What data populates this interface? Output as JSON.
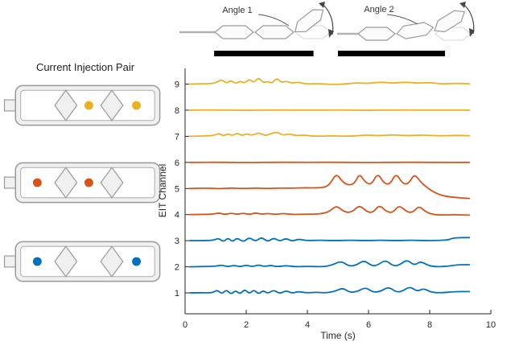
{
  "figure": {
    "left_panel": {
      "title": "Current Injection Pair",
      "actuators": [
        {
          "name": "injection-pair-yellow",
          "color": "#EDB120",
          "dots": [
            "middle",
            "right"
          ]
        },
        {
          "name": "injection-pair-orange",
          "color": "#D95319",
          "dots": [
            "left",
            "middle"
          ]
        },
        {
          "name": "injection-pair-blue",
          "color": "#0072BD",
          "dots": [
            "left",
            "right"
          ]
        }
      ]
    },
    "top_panel": {
      "angle1_label": "Angle 1",
      "angle2_label": "Angle 2"
    }
  },
  "chart_data": {
    "type": "line",
    "title": "",
    "xlabel": "Time (s)",
    "ylabel": "EIT Channel",
    "xlim": [
      0,
      10
    ],
    "ylim": [
      0.2,
      9.6
    ],
    "xticks": [
      0,
      2,
      4,
      6,
      8,
      10
    ],
    "yticks": [
      1,
      2,
      3,
      4,
      5,
      6,
      7,
      8,
      9
    ],
    "grid": false,
    "note": "Nine EIT channel traces; each series is plotted at y = channel + offset. Points are [time_s, offset].",
    "activity_bars": [
      {
        "name": "angle1-motion-bar",
        "start": 0.95,
        "end": 4.2
      },
      {
        "name": "angle2-motion-bar",
        "start": 5.0,
        "end": 8.5
      }
    ],
    "series": [
      {
        "name": "channel-1",
        "channel": 1,
        "color": "#0072BD",
        "points": [
          [
            0.15,
            0
          ],
          [
            0.5,
            0.01
          ],
          [
            0.9,
            0
          ],
          [
            1.05,
            0.12
          ],
          [
            1.2,
            -0.05
          ],
          [
            1.35,
            0.13
          ],
          [
            1.5,
            -0.06
          ],
          [
            1.65,
            0.1
          ],
          [
            1.8,
            -0.05
          ],
          [
            1.95,
            0.15
          ],
          [
            2.1,
            -0.04
          ],
          [
            2.25,
            0.13
          ],
          [
            2.4,
            -0.05
          ],
          [
            2.55,
            0.1
          ],
          [
            2.7,
            -0.03
          ],
          [
            2.9,
            0.12
          ],
          [
            3.1,
            -0.04
          ],
          [
            3.3,
            0.1
          ],
          [
            3.5,
            -0.02
          ],
          [
            3.7,
            0.06
          ],
          [
            3.95,
            0
          ],
          [
            4.3,
            0.03
          ],
          [
            4.6,
            0
          ],
          [
            4.9,
            0.06
          ],
          [
            5.15,
            0.2
          ],
          [
            5.4,
            0.01
          ],
          [
            5.65,
            0.06
          ],
          [
            5.9,
            0.22
          ],
          [
            6.15,
            0.02
          ],
          [
            6.4,
            0.06
          ],
          [
            6.65,
            0.24
          ],
          [
            6.9,
            0.03
          ],
          [
            7.1,
            0.06
          ],
          [
            7.35,
            0.25
          ],
          [
            7.6,
            0.05
          ],
          [
            7.8,
            0.18
          ],
          [
            8.05,
            0.02
          ],
          [
            8.4,
            0
          ],
          [
            8.8,
            0.05
          ],
          [
            9.3,
            0.05
          ]
        ]
      },
      {
        "name": "channel-2",
        "channel": 2,
        "color": "#0072BD",
        "points": [
          [
            0.15,
            0
          ],
          [
            0.6,
            0.01
          ],
          [
            1.0,
            0.02
          ],
          [
            1.2,
            0.07
          ],
          [
            1.4,
            0
          ],
          [
            1.6,
            0.06
          ],
          [
            1.8,
            0
          ],
          [
            2.0,
            0.07
          ],
          [
            2.2,
            0
          ],
          [
            2.4,
            0.08
          ],
          [
            2.6,
            0.01
          ],
          [
            2.8,
            0.06
          ],
          [
            3.0,
            0
          ],
          [
            3.3,
            0.05
          ],
          [
            3.6,
            0
          ],
          [
            4.0,
            0.02
          ],
          [
            4.5,
            0
          ],
          [
            4.8,
            0.06
          ],
          [
            5.1,
            0.23
          ],
          [
            5.35,
            0.02
          ],
          [
            5.6,
            0.06
          ],
          [
            5.85,
            0.26
          ],
          [
            6.1,
            0.03
          ],
          [
            6.3,
            0.06
          ],
          [
            6.55,
            0.27
          ],
          [
            6.8,
            0.03
          ],
          [
            7.0,
            0.06
          ],
          [
            7.25,
            0.28
          ],
          [
            7.5,
            0.05
          ],
          [
            7.7,
            0.22
          ],
          [
            7.95,
            0.05
          ],
          [
            8.2,
            0
          ],
          [
            8.6,
            0.02
          ],
          [
            8.9,
            0.08
          ],
          [
            9.3,
            0.08
          ]
        ]
      },
      {
        "name": "channel-3",
        "channel": 3,
        "color": "#0072BD",
        "points": [
          [
            0.15,
            0
          ],
          [
            0.6,
            0
          ],
          [
            0.95,
            0.02
          ],
          [
            1.1,
            0.1
          ],
          [
            1.25,
            -0.05
          ],
          [
            1.4,
            0.12
          ],
          [
            1.55,
            -0.05
          ],
          [
            1.7,
            0.12
          ],
          [
            1.9,
            -0.06
          ],
          [
            2.1,
            0.14
          ],
          [
            2.3,
            -0.04
          ],
          [
            2.5,
            0.15
          ],
          [
            2.7,
            -0.05
          ],
          [
            2.9,
            0.12
          ],
          [
            3.1,
            -0.03
          ],
          [
            3.3,
            0.1
          ],
          [
            3.5,
            -0.03
          ],
          [
            3.7,
            0.07
          ],
          [
            3.95,
            0
          ],
          [
            4.4,
            0.02
          ],
          [
            4.9,
            0
          ],
          [
            5.4,
            0.02
          ],
          [
            5.9,
            0
          ],
          [
            6.4,
            0.02
          ],
          [
            6.9,
            0
          ],
          [
            7.4,
            0.02
          ],
          [
            7.9,
            0
          ],
          [
            8.3,
            0.01
          ],
          [
            8.6,
            0.03
          ],
          [
            8.75,
            0.1
          ],
          [
            9.0,
            0.12
          ],
          [
            9.3,
            0.12
          ]
        ]
      },
      {
        "name": "channel-4",
        "channel": 4,
        "color": "#D95319",
        "points": [
          [
            0.15,
            0
          ],
          [
            0.6,
            0.01
          ],
          [
            0.95,
            0.02
          ],
          [
            1.1,
            0.07
          ],
          [
            1.3,
            0
          ],
          [
            1.5,
            0.06
          ],
          [
            1.7,
            0.01
          ],
          [
            1.9,
            0.06
          ],
          [
            2.1,
            0
          ],
          [
            2.3,
            0.07
          ],
          [
            2.5,
            0.01
          ],
          [
            2.7,
            0.05
          ],
          [
            2.95,
            0
          ],
          [
            3.2,
            0.05
          ],
          [
            3.5,
            0
          ],
          [
            3.9,
            0.02
          ],
          [
            4.4,
            0.02
          ],
          [
            4.7,
            0.1
          ],
          [
            4.95,
            0.36
          ],
          [
            5.2,
            0.1
          ],
          [
            5.45,
            0.08
          ],
          [
            5.7,
            0.37
          ],
          [
            5.95,
            0.1
          ],
          [
            6.15,
            0.08
          ],
          [
            6.35,
            0.38
          ],
          [
            6.6,
            0.1
          ],
          [
            6.8,
            0.08
          ],
          [
            7.0,
            0.37
          ],
          [
            7.25,
            0.1
          ],
          [
            7.45,
            0.08
          ],
          [
            7.65,
            0.34
          ],
          [
            7.85,
            0.12
          ],
          [
            8.05,
            0.02
          ],
          [
            8.35,
            -0.02
          ],
          [
            8.8,
            0
          ],
          [
            9.3,
            -0.02
          ]
        ]
      },
      {
        "name": "channel-5",
        "channel": 5,
        "color": "#D95319",
        "points": [
          [
            0.15,
            0
          ],
          [
            0.7,
            0.02
          ],
          [
            1.1,
            -0.01
          ],
          [
            1.5,
            0.02
          ],
          [
            1.9,
            0
          ],
          [
            2.3,
            0.02
          ],
          [
            2.7,
            0
          ],
          [
            3.1,
            0.02
          ],
          [
            3.5,
            0.01
          ],
          [
            3.9,
            0.03
          ],
          [
            4.3,
            0.02
          ],
          [
            4.6,
            0.05
          ],
          [
            4.75,
            0.2
          ],
          [
            4.95,
            0.58
          ],
          [
            5.15,
            0.25
          ],
          [
            5.35,
            0.12
          ],
          [
            5.55,
            0.2
          ],
          [
            5.7,
            0.58
          ],
          [
            5.9,
            0.22
          ],
          [
            6.1,
            0.15
          ],
          [
            6.3,
            0.6
          ],
          [
            6.5,
            0.2
          ],
          [
            6.7,
            0.15
          ],
          [
            6.9,
            0.6
          ],
          [
            7.1,
            0.2
          ],
          [
            7.3,
            0.16
          ],
          [
            7.5,
            0.57
          ],
          [
            7.7,
            0.25
          ],
          [
            7.9,
            0.05
          ],
          [
            8.1,
            -0.12
          ],
          [
            8.4,
            -0.28
          ],
          [
            8.8,
            -0.34
          ],
          [
            9.3,
            -0.38
          ]
        ]
      },
      {
        "name": "channel-6",
        "channel": 6,
        "color": "#D95319",
        "points": [
          [
            0.15,
            0
          ],
          [
            1.0,
            0.005
          ],
          [
            2.0,
            -0.005
          ],
          [
            3.0,
            0.005
          ],
          [
            4.0,
            0
          ],
          [
            5.0,
            0.005
          ],
          [
            6.0,
            -0.005
          ],
          [
            7.0,
            0.005
          ],
          [
            8.0,
            0
          ],
          [
            9.3,
            0
          ]
        ]
      },
      {
        "name": "channel-7",
        "channel": 7,
        "color": "#EDB120",
        "points": [
          [
            0.15,
            0
          ],
          [
            0.6,
            0.01
          ],
          [
            0.95,
            0.03
          ],
          [
            1.1,
            0.12
          ],
          [
            1.25,
            0.01
          ],
          [
            1.4,
            0.1
          ],
          [
            1.55,
            0.02
          ],
          [
            1.7,
            0.13
          ],
          [
            1.85,
            0.02
          ],
          [
            2.0,
            0.1
          ],
          [
            2.2,
            0.03
          ],
          [
            2.4,
            0.15
          ],
          [
            2.6,
            0.02
          ],
          [
            2.8,
            0.09
          ],
          [
            3.0,
            0.17
          ],
          [
            3.2,
            0.03
          ],
          [
            3.4,
            0.1
          ],
          [
            3.6,
            0.02
          ],
          [
            3.9,
            0.05
          ],
          [
            4.2,
            0
          ],
          [
            4.8,
            0.02
          ],
          [
            5.4,
            0
          ],
          [
            5.9,
            0.05
          ],
          [
            6.3,
            0.02
          ],
          [
            6.8,
            0.06
          ],
          [
            7.3,
            0.02
          ],
          [
            7.8,
            0.05
          ],
          [
            8.3,
            0.01
          ],
          [
            8.8,
            0.04
          ],
          [
            9.3,
            0.02
          ]
        ]
      },
      {
        "name": "channel-8",
        "channel": 8,
        "color": "#EDB120",
        "points": [
          [
            0.15,
            0
          ],
          [
            1.0,
            0.01
          ],
          [
            2.0,
            -0.01
          ],
          [
            3.0,
            0.01
          ],
          [
            4.0,
            0
          ],
          [
            5.0,
            0.01
          ],
          [
            6.0,
            -0.01
          ],
          [
            7.0,
            0.01
          ],
          [
            8.0,
            0
          ],
          [
            9.3,
            0
          ]
        ]
      },
      {
        "name": "channel-9",
        "channel": 9,
        "color": "#EDB120",
        "points": [
          [
            0.15,
            0
          ],
          [
            0.6,
            0.01
          ],
          [
            0.9,
            0.02
          ],
          [
            1.05,
            0.08
          ],
          [
            1.2,
            0.18
          ],
          [
            1.35,
            0.02
          ],
          [
            1.5,
            0.15
          ],
          [
            1.65,
            0.01
          ],
          [
            1.8,
            0.12
          ],
          [
            1.95,
            0.03
          ],
          [
            2.1,
            0.2
          ],
          [
            2.25,
            0.04
          ],
          [
            2.4,
            0.26
          ],
          [
            2.55,
            0.05
          ],
          [
            2.7,
            0.1
          ],
          [
            2.85,
            0.03
          ],
          [
            3.0,
            0.24
          ],
          [
            3.15,
            0.05
          ],
          [
            3.3,
            0.12
          ],
          [
            3.5,
            0.03
          ],
          [
            3.7,
            0.08
          ],
          [
            3.95,
            0
          ],
          [
            4.4,
            0.02
          ],
          [
            4.8,
            -0.02
          ],
          [
            5.2,
            0
          ],
          [
            5.6,
            0.05
          ],
          [
            6.0,
            0.02
          ],
          [
            6.4,
            0.08
          ],
          [
            6.8,
            0.03
          ],
          [
            7.2,
            0.08
          ],
          [
            7.6,
            0.03
          ],
          [
            8.0,
            0.06
          ],
          [
            8.4,
            0
          ],
          [
            8.8,
            0.03
          ],
          [
            9.3,
            0.01
          ]
        ]
      }
    ]
  }
}
